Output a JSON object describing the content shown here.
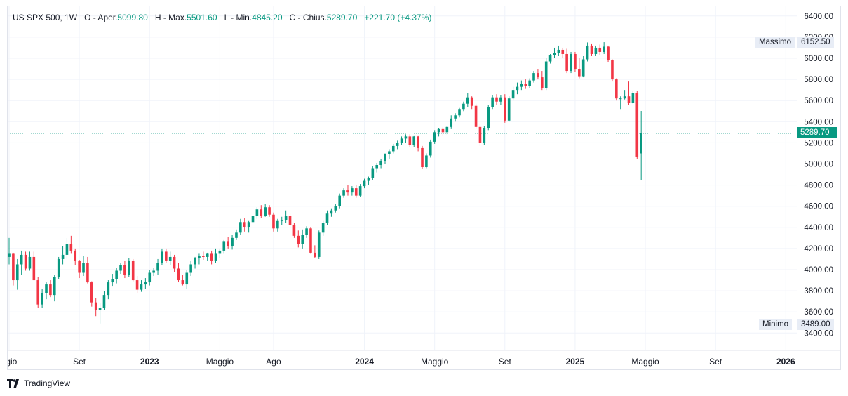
{
  "legend": {
    "symbol": "US SPX 500, 1W",
    "o_label": "O - Aper.",
    "o_value": "5099.80",
    "h_label": "H - Max.",
    "h_value": "5501.60",
    "l_label": "L - Min.",
    "l_value": "4845.20",
    "c_label": "C - Chius.",
    "c_value": "5289.70",
    "change": "+221.70 (+4.37%)"
  },
  "labels": {
    "max_label": "Massimo",
    "max_value": "6152.50",
    "min_label": "Minimo",
    "min_value": "3489.00",
    "last_price": "5289.70"
  },
  "brand": {
    "name": "TradingView",
    "logo_icon": "tradingview-logo-icon"
  },
  "colors": {
    "up": "#089981",
    "down": "#f23645",
    "last_price_bg": "#089981",
    "grid": "#f0f3fa"
  },
  "chart_data": {
    "type": "candlestick",
    "interval": "1W",
    "grid": true,
    "y_ticks": [
      3400,
      3600,
      3800,
      4000,
      4200,
      4400,
      4600,
      4800,
      5000,
      5200,
      5400,
      5600,
      5800,
      6000,
      6200,
      6400
    ],
    "y_tick_labels": [
      "3400.00",
      "3600.00",
      "3800.00",
      "4000.00",
      "4200.00",
      "4400.00",
      "4600.00",
      "4800.00",
      "5000.00",
      "5200.00",
      "5400.00",
      "5600.00",
      "5800.00",
      "6000.00",
      "6200.00",
      "6400.00"
    ],
    "ylim": [
      3320,
      6480
    ],
    "x_ticks": [
      {
        "label": "ggio",
        "week": 0,
        "bold": false
      },
      {
        "label": "Set",
        "week": 17,
        "bold": false
      },
      {
        "label": "2023",
        "week": 34,
        "bold": true
      },
      {
        "label": "Maggio",
        "week": 51,
        "bold": false
      },
      {
        "label": "Ago",
        "week": 64,
        "bold": false
      },
      {
        "label": "2024",
        "week": 86,
        "bold": true
      },
      {
        "label": "Maggio",
        "week": 103,
        "bold": false
      },
      {
        "label": "Set",
        "week": 120,
        "bold": false
      },
      {
        "label": "2025",
        "week": 137,
        "bold": true
      },
      {
        "label": "Maggio",
        "week": 154,
        "bold": false
      },
      {
        "label": "Set",
        "week": 171,
        "bold": false
      },
      {
        "label": "2026",
        "week": 188,
        "bold": true
      }
    ],
    "candles": [
      [
        4120,
        4300,
        4050,
        4150
      ],
      [
        4150,
        4160,
        3850,
        3900
      ],
      [
        3900,
        4100,
        3810,
        4050
      ],
      [
        4050,
        4180,
        3950,
        4140
      ],
      [
        4140,
        4170,
        3990,
        4010
      ],
      [
        4010,
        4170,
        3990,
        4120
      ],
      [
        4120,
        4170,
        3900,
        3900
      ],
      [
        3900,
        3930,
        3640,
        3670
      ],
      [
        3670,
        3820,
        3640,
        3780
      ],
      [
        3780,
        3880,
        3720,
        3860
      ],
      [
        3860,
        3900,
        3740,
        3760
      ],
      [
        3760,
        3950,
        3700,
        3930
      ],
      [
        3930,
        4120,
        3910,
        4100
      ],
      [
        4100,
        4220,
        4050,
        4140
      ],
      [
        4140,
        4300,
        4100,
        4240
      ],
      [
        4240,
        4320,
        4150,
        4180
      ],
      [
        4180,
        4200,
        4040,
        4080
      ],
      [
        4080,
        4090,
        3920,
        3970
      ],
      [
        3970,
        4130,
        3940,
        4060
      ],
      [
        4060,
        4120,
        3870,
        3880
      ],
      [
        3880,
        3890,
        3650,
        3690
      ],
      [
        3690,
        3730,
        3560,
        3620
      ],
      [
        3620,
        3680,
        3490,
        3640
      ],
      [
        3640,
        3800,
        3620,
        3760
      ],
      [
        3760,
        3900,
        3720,
        3880
      ],
      [
        3880,
        3960,
        3840,
        3910
      ],
      [
        3910,
        4020,
        3870,
        3990
      ],
      [
        3990,
        4060,
        3960,
        4040
      ],
      [
        4040,
        4080,
        3920,
        3950
      ],
      [
        3950,
        4110,
        3930,
        4080
      ],
      [
        4080,
        4100,
        3890,
        3900
      ],
      [
        3900,
        3940,
        3780,
        3810
      ],
      [
        3810,
        3900,
        3790,
        3860
      ],
      [
        3860,
        3920,
        3820,
        3880
      ],
      [
        3880,
        4000,
        3850,
        3970
      ],
      [
        3970,
        4020,
        3940,
        3990
      ],
      [
        3990,
        4100,
        3950,
        4060
      ],
      [
        4060,
        4200,
        4040,
        4170
      ],
      [
        4170,
        4200,
        4060,
        4080
      ],
      [
        4080,
        4170,
        4040,
        4120
      ],
      [
        4120,
        4140,
        3980,
        4010
      ],
      [
        4010,
        4060,
        3880,
        3900
      ],
      [
        3900,
        3950,
        3850,
        3860
      ],
      [
        3860,
        4000,
        3820,
        3970
      ],
      [
        3970,
        4080,
        3940,
        4050
      ],
      [
        4050,
        4120,
        4010,
        4110
      ],
      [
        4110,
        4150,
        4050,
        4130
      ],
      [
        4130,
        4170,
        4090,
        4120
      ],
      [
        4120,
        4160,
        4080,
        4150
      ],
      [
        4150,
        4180,
        4050,
        4080
      ],
      [
        4080,
        4200,
        4060,
        4150
      ],
      [
        4150,
        4200,
        4110,
        4180
      ],
      [
        4180,
        4280,
        4150,
        4270
      ],
      [
        4270,
        4310,
        4200,
        4220
      ],
      [
        4220,
        4330,
        4190,
        4300
      ],
      [
        4300,
        4380,
        4280,
        4350
      ],
      [
        4350,
        4480,
        4330,
        4450
      ],
      [
        4450,
        4490,
        4360,
        4400
      ],
      [
        4400,
        4460,
        4350,
        4450
      ],
      [
        4450,
        4540,
        4400,
        4510
      ],
      [
        4510,
        4590,
        4480,
        4570
      ],
      [
        4570,
        4610,
        4490,
        4510
      ],
      [
        4510,
        4620,
        4500,
        4590
      ],
      [
        4590,
        4610,
        4500,
        4520
      ],
      [
        4520,
        4540,
        4360,
        4390
      ],
      [
        4390,
        4480,
        4360,
        4460
      ],
      [
        4460,
        4500,
        4420,
        4470
      ],
      [
        4470,
        4560,
        4440,
        4510
      ],
      [
        4510,
        4540,
        4390,
        4420
      ],
      [
        4420,
        4440,
        4300,
        4320
      ],
      [
        4320,
        4370,
        4210,
        4240
      ],
      [
        4240,
        4380,
        4200,
        4330
      ],
      [
        4330,
        4410,
        4300,
        4390
      ],
      [
        4390,
        4400,
        4150,
        4160
      ],
      [
        4160,
        4230,
        4110,
        4120
      ],
      [
        4120,
        4370,
        4100,
        4350
      ],
      [
        4350,
        4460,
        4320,
        4440
      ],
      [
        4440,
        4560,
        4420,
        4530
      ],
      [
        4530,
        4580,
        4500,
        4560
      ],
      [
        4560,
        4620,
        4540,
        4600
      ],
      [
        4600,
        4720,
        4580,
        4700
      ],
      [
        4700,
        4770,
        4680,
        4750
      ],
      [
        4750,
        4800,
        4700,
        4730
      ],
      [
        4730,
        4790,
        4700,
        4770
      ],
      [
        4770,
        4800,
        4680,
        4700
      ],
      [
        4700,
        4810,
        4690,
        4790
      ],
      [
        4790,
        4860,
        4770,
        4840
      ],
      [
        4840,
        4880,
        4800,
        4870
      ],
      [
        4870,
        4980,
        4850,
        4960
      ],
      [
        4960,
        5010,
        4920,
        4990
      ],
      [
        4990,
        5050,
        4960,
        5030
      ],
      [
        5030,
        5100,
        5000,
        5090
      ],
      [
        5090,
        5140,
        5050,
        5120
      ],
      [
        5120,
        5190,
        5100,
        5170
      ],
      [
        5170,
        5220,
        5140,
        5200
      ],
      [
        5200,
        5260,
        5180,
        5240
      ],
      [
        5240,
        5280,
        5200,
        5260
      ],
      [
        5260,
        5280,
        5160,
        5180
      ],
      [
        5180,
        5270,
        5160,
        5260
      ],
      [
        5260,
        5270,
        5120,
        5150
      ],
      [
        5150,
        5170,
        4950,
        4970
      ],
      [
        4970,
        5100,
        4960,
        5080
      ],
      [
        5080,
        5230,
        5060,
        5210
      ],
      [
        5210,
        5320,
        5190,
        5300
      ],
      [
        5300,
        5340,
        5260,
        5330
      ],
      [
        5330,
        5350,
        5270,
        5300
      ],
      [
        5300,
        5360,
        5280,
        5350
      ],
      [
        5350,
        5460,
        5330,
        5430
      ],
      [
        5430,
        5480,
        5400,
        5460
      ],
      [
        5460,
        5530,
        5440,
        5520
      ],
      [
        5520,
        5590,
        5500,
        5570
      ],
      [
        5570,
        5670,
        5540,
        5630
      ],
      [
        5630,
        5640,
        5520,
        5550
      ],
      [
        5550,
        5570,
        5330,
        5350
      ],
      [
        5350,
        5380,
        5170,
        5200
      ],
      [
        5200,
        5360,
        5180,
        5340
      ],
      [
        5340,
        5560,
        5320,
        5540
      ],
      [
        5540,
        5650,
        5520,
        5630
      ],
      [
        5630,
        5660,
        5560,
        5590
      ],
      [
        5590,
        5650,
        5560,
        5630
      ],
      [
        5630,
        5660,
        5390,
        5410
      ],
      [
        5410,
        5640,
        5400,
        5620
      ],
      [
        5620,
        5730,
        5600,
        5700
      ],
      [
        5700,
        5770,
        5660,
        5730
      ],
      [
        5730,
        5790,
        5700,
        5760
      ],
      [
        5760,
        5800,
        5710,
        5740
      ],
      [
        5740,
        5810,
        5720,
        5790
      ],
      [
        5790,
        5880,
        5770,
        5860
      ],
      [
        5860,
        5900,
        5800,
        5820
      ],
      [
        5820,
        5880,
        5700,
        5720
      ],
      [
        5720,
        6000,
        5700,
        5970
      ],
      [
        5970,
        6040,
        5950,
        6030
      ],
      [
        6030,
        6100,
        6000,
        6050
      ],
      [
        6050,
        6120,
        6020,
        6080
      ],
      [
        6080,
        6100,
        6000,
        6040
      ],
      [
        6040,
        6090,
        5860,
        5880
      ],
      [
        5880,
        6060,
        5860,
        6040
      ],
      [
        6040,
        6060,
        5870,
        5900
      ],
      [
        5900,
        6000,
        5810,
        5830
      ],
      [
        5830,
        6020,
        5820,
        5990
      ],
      [
        5990,
        6150,
        5970,
        6120
      ],
      [
        6120,
        6140,
        6020,
        6040
      ],
      [
        6040,
        6120,
        6020,
        6100
      ],
      [
        6100,
        6130,
        6030,
        6060
      ],
      [
        6060,
        6152.5,
        6040,
        6110
      ],
      [
        6110,
        6120,
        5960,
        5980
      ],
      [
        5980,
        5990,
        5780,
        5800
      ],
      [
        5800,
        5810,
        5600,
        5620
      ],
      [
        5620,
        5640,
        5520,
        5620
      ],
      [
        5620,
        5700,
        5610,
        5640
      ],
      [
        5640,
        5780,
        5560,
        5580
      ],
      [
        5580,
        5690,
        5570,
        5670
      ],
      [
        5670,
        5690,
        5050,
        5070
      ],
      [
        5099.8,
        5501.6,
        4845.2,
        5289.7
      ]
    ]
  }
}
